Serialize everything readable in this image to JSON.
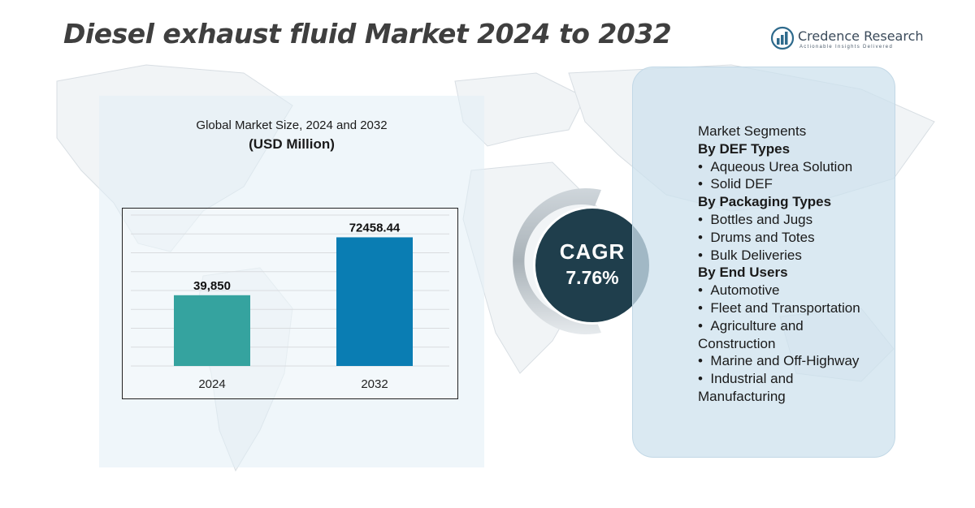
{
  "title": "Diesel exhaust fluid Market 2024 to 2032",
  "brand": {
    "name": "Credence Research",
    "tagline": "Actionable Insights Delivered",
    "logo_icon": "bar-chart-logo-icon",
    "color": "#2e6a8c"
  },
  "panel": {
    "subtitle": "Global Market Size, 2024 and 2032",
    "unit": "(USD Million)"
  },
  "chart_data": {
    "type": "bar",
    "categories": [
      "2024",
      "2032"
    ],
    "values": [
      39850,
      72458.44
    ],
    "data_labels": [
      "39,850",
      "72458.44"
    ],
    "colors": [
      "#35a39f",
      "#0a7db3"
    ],
    "ylim": [
      0,
      85000
    ],
    "grid": true
  },
  "cagr": {
    "label": "CAGR",
    "value": "7.76%"
  },
  "segments": {
    "heading": "Market Segments",
    "groups": [
      {
        "title": "By DEF Types",
        "items": [
          "Aqueous Urea Solution",
          "Solid DEF"
        ]
      },
      {
        "title": "By Packaging Types",
        "items": [
          "Bottles and Jugs",
          "Drums and Totes",
          "Bulk Deliveries"
        ]
      },
      {
        "title": "By End Users",
        "items": [
          "Automotive",
          "Fleet and Transportation",
          "Agriculture and",
          "Construction",
          "Marine and Off-Highway",
          "Industrial and",
          "Manufacturing"
        ]
      }
    ]
  }
}
